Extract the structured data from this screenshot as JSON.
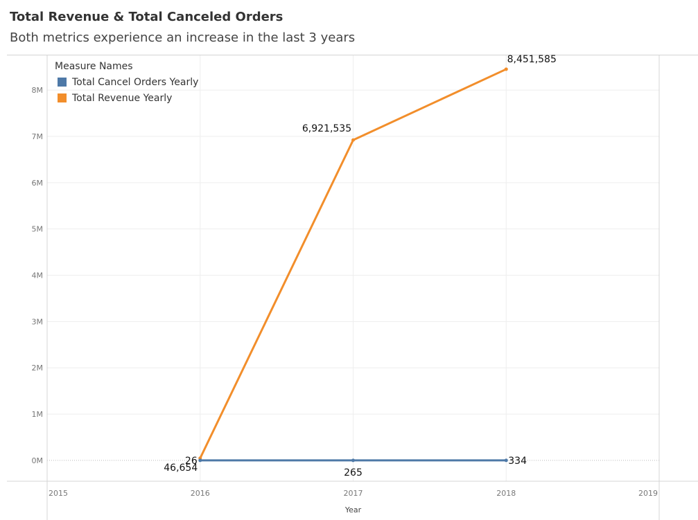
{
  "title": "Total Revenue & Total Canceled Orders",
  "subtitle": "Both metrics experience an increase in the last 3 years",
  "legend": {
    "title": "Measure Names",
    "items": [
      {
        "label": "Total Cancel Orders Yearly",
        "color": "#4e79a7"
      },
      {
        "label": "Total Revenue Yearly",
        "color": "#f28e2b"
      }
    ]
  },
  "chart_data": {
    "type": "line",
    "title": "Total Revenue & Total Canceled Orders",
    "subtitle": "Both metrics experience an increase in the last 3 years",
    "xlabel": "Year",
    "ylabel": "",
    "x_ticks": [
      "2015",
      "2016",
      "2017",
      "2018",
      "2019"
    ],
    "y_ticks": [
      "0M",
      "1M",
      "2M",
      "3M",
      "4M",
      "5M",
      "6M",
      "7M",
      "8M"
    ],
    "xlim": [
      2015,
      2019
    ],
    "ylim": [
      -450000,
      8750000
    ],
    "grid": true,
    "legend_position": "top-left",
    "x": [
      2016,
      2017,
      2018
    ],
    "series": [
      {
        "name": "Total Revenue Yearly",
        "color": "#f28e2b",
        "values": [
          46654,
          6921535,
          8451585
        ],
        "labels": [
          "46,654",
          "6,921,535",
          "8,451,585"
        ]
      },
      {
        "name": "Total Cancel Orders Yearly",
        "color": "#4e79a7",
        "values": [
          26,
          265,
          334
        ],
        "labels": [
          "26",
          "265",
          "334"
        ]
      }
    ]
  }
}
